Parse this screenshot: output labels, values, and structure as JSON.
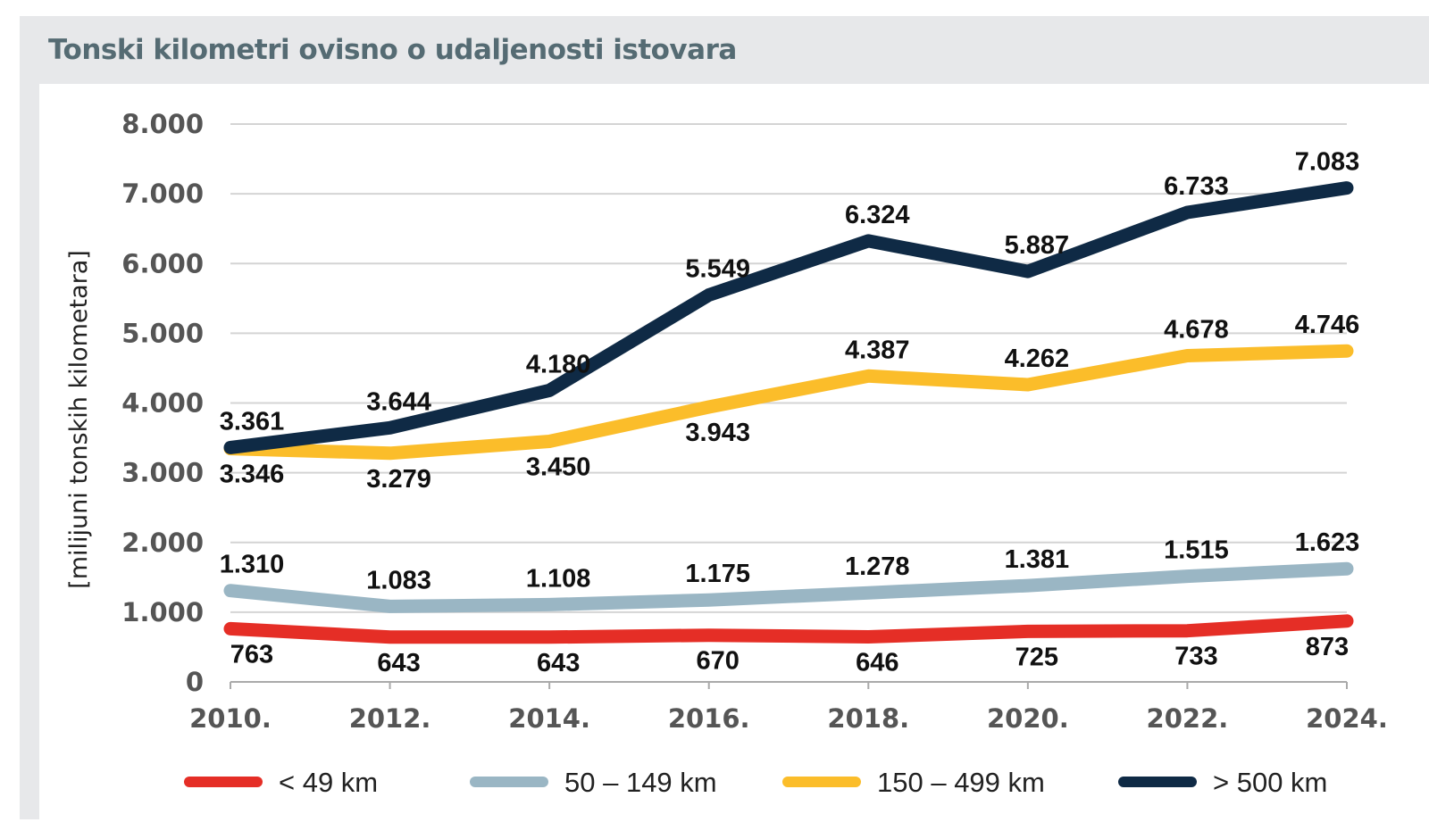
{
  "title": "Tonski kilometri ovisno o udaljenosti istovara",
  "chart_data": {
    "type": "line",
    "title": "Tonski kilometri ovisno o udaljenosti istovara",
    "xlabel": "",
    "ylabel": "[milijuni tonskih kilometara]",
    "categories": [
      "2010.",
      "2012.",
      "2014.",
      "2016.",
      "2018.",
      "2020.",
      "2022.",
      "2024."
    ],
    "ylim": [
      0,
      8000
    ],
    "yticks": [
      0,
      1000,
      2000,
      3000,
      4000,
      5000,
      6000,
      7000,
      8000
    ],
    "ytick_labels": [
      "0",
      "1.000",
      "2.000",
      "3.000",
      "4.000",
      "5.000",
      "6.000",
      "7.000",
      "8.000"
    ],
    "grid": true,
    "legend_position": "bottom",
    "series": [
      {
        "name": "< 49 km",
        "color": "#e52e26",
        "label_position": "below",
        "values": [
          763,
          643,
          643,
          670,
          646,
          725,
          733,
          873
        ],
        "labels": [
          "763",
          "643",
          "643",
          "670",
          "646",
          "725",
          "733",
          "873"
        ]
      },
      {
        "name": "50 – 149 km",
        "color": "#9ab6c4",
        "label_position": "above",
        "values": [
          1310,
          1083,
          1108,
          1175,
          1278,
          1381,
          1515,
          1623
        ],
        "labels": [
          "1.310",
          "1.083",
          "1.108",
          "1.175",
          "1.278",
          "1.381",
          "1.515",
          "1.623"
        ]
      },
      {
        "name": "150 – 499 km",
        "color": "#fbbd2a",
        "label_position": "mixed",
        "values": [
          3346,
          3279,
          3450,
          3943,
          4387,
          4262,
          4678,
          4746
        ],
        "labels": [
          "3.346",
          "3.279",
          "3.450",
          "3.943",
          "4.387",
          "4.262",
          "4.678",
          "4.746"
        ]
      },
      {
        "name": "> 500 km",
        "color": "#0f2a45",
        "label_position": "above",
        "values": [
          3361,
          3644,
          4180,
          5549,
          6324,
          5887,
          6733,
          7083
        ],
        "labels": [
          "3.361",
          "3.644",
          "4.180",
          "5.549",
          "6.324",
          "5.887",
          "6.733",
          "7.083"
        ]
      }
    ]
  }
}
